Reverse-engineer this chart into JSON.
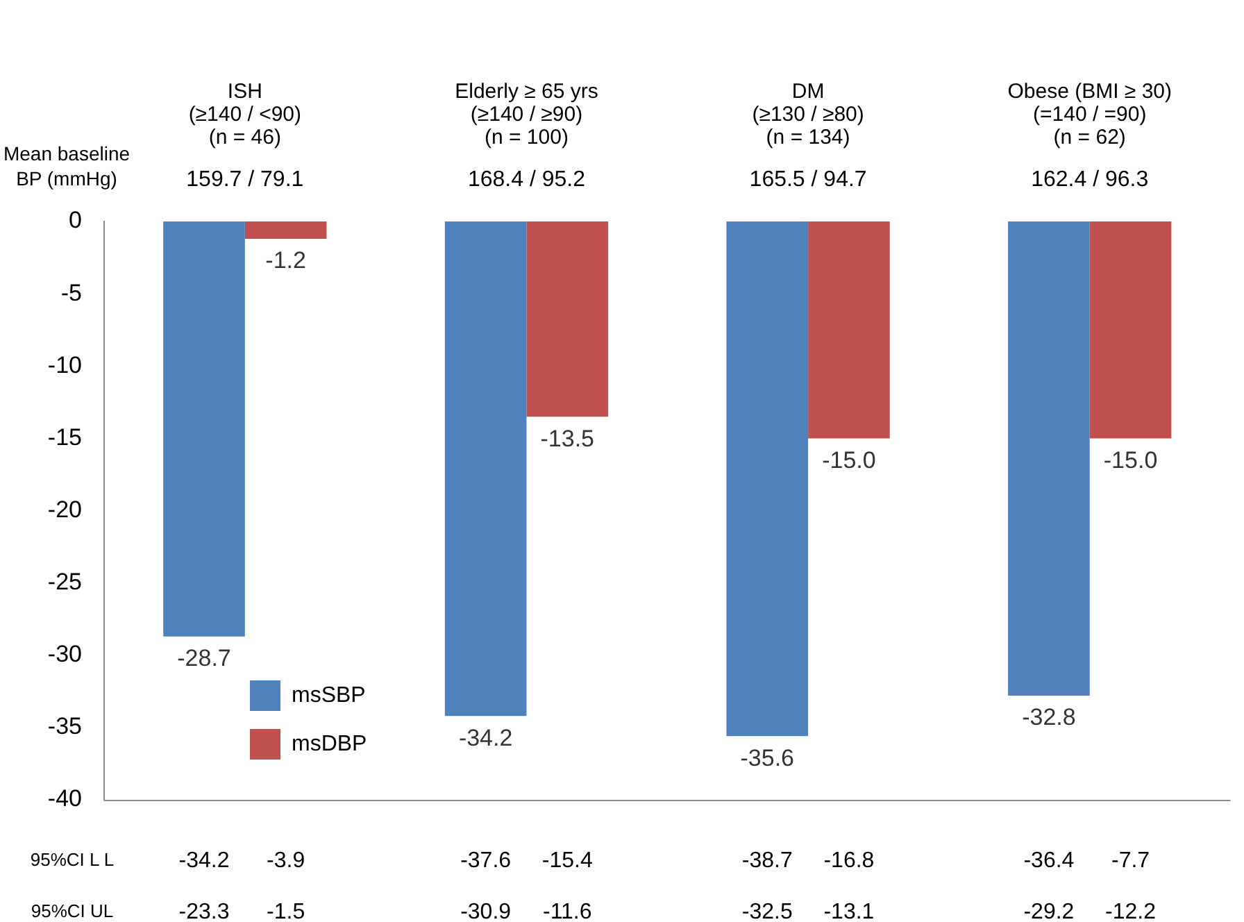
{
  "chart_data": {
    "type": "bar",
    "categories": [
      "ISH\n(≥140 / <90)\n(n = 46)",
      "Elderly ≥ 65 yrs\n(≥140 / ≥90)\n(n = 100)",
      "DM\n(≥130 / ≥80)\n(n = 134)",
      "Obese (BMI ≥ 30)\n(=140 / =90)\n(n = 62)"
    ],
    "series": [
      {
        "name": "msSBP",
        "color": "#4f81bd",
        "values": [
          -28.7,
          -34.2,
          -35.6,
          -32.8
        ],
        "value_labels": [
          "-28.7",
          "-34.2",
          "-35.6",
          "-32.8"
        ]
      },
      {
        "name": "msDBP",
        "color": "#c0504d",
        "values": [
          -1.2,
          -13.5,
          -15.0,
          -15.0
        ],
        "value_labels": [
          "-1.2",
          "-13.5",
          "-15.0",
          "-15.0"
        ]
      }
    ],
    "ylim": [
      -40,
      0
    ],
    "yticks": [
      0,
      -5,
      -10,
      -15,
      -20,
      -25,
      -30,
      -35,
      -40
    ],
    "grid": false,
    "legend": "bottom left",
    "annotations": [
      "Mean baseline\nBP (mmHg)",
      "159.7 / 79.1",
      "168.4 / 95.2",
      "165.5 / 94.7",
      "162.4 / 96.3",
      "95%CI L L",
      "-34.2",
      "-3.9",
      "-37.6",
      "-15.4",
      "-38.7",
      "-16.8",
      "-36.4",
      "-7.7",
      "95%CI UL",
      "-23.3",
      "-1.5",
      "-30.9",
      "-11.6",
      "-32.5",
      "-13.1",
      "-29.2",
      "-12.2"
    ]
  }
}
